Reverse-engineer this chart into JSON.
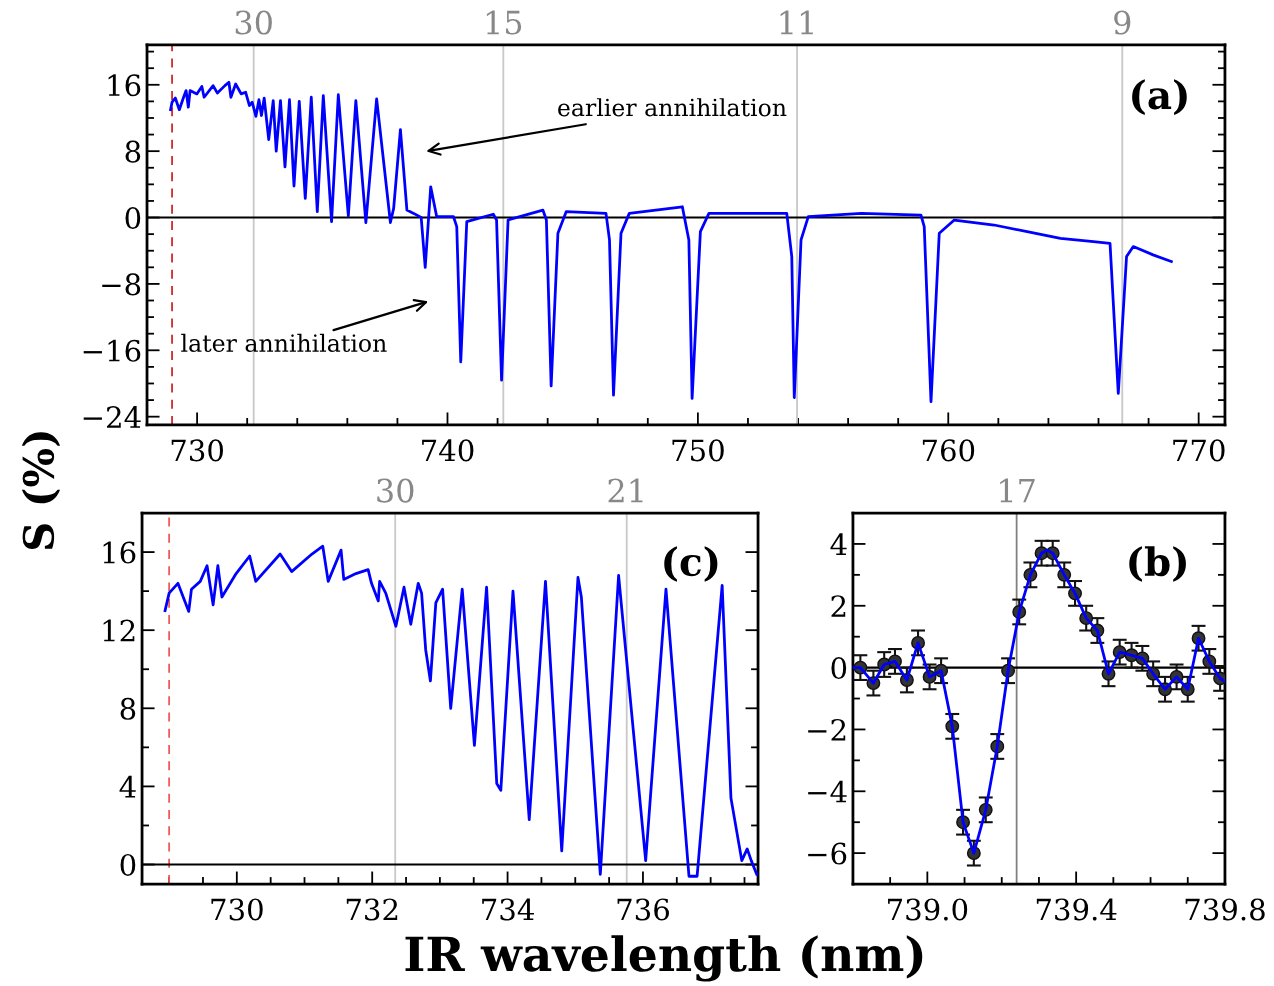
{
  "chart_data": [
    {
      "type": "line",
      "title": "(a)",
      "ylabel": "S (%)",
      "xlim": [
        728.0,
        771.05
      ],
      "xticks": [
        730,
        740,
        750,
        760,
        770
      ],
      "ylim": [
        -25,
        20.8
      ],
      "yticks": [
        {
          "value": -24,
          "label": "−24"
        },
        {
          "value": -16,
          "label": "−16"
        },
        {
          "value": -8,
          "label": "−8"
        },
        0,
        8,
        16
      ],
      "ref_lines": [
        {
          "axis": "x",
          "value": 732.26,
          "color": "#c8c8c8"
        },
        {
          "axis": "x",
          "value": 742.23,
          "color": "#c8c8c8"
        },
        {
          "axis": "x",
          "value": 753.96,
          "color": "#c8c8c8"
        },
        {
          "axis": "x",
          "value": 766.95,
          "color": "#c8c8c8"
        },
        {
          "axis": "x",
          "value": 729.0,
          "color": "#d42a2a",
          "line_style": "dashed"
        },
        {
          "axis": "y",
          "value": 0,
          "color": "#000000"
        }
      ],
      "annotations": [
        "earlier annihilation",
        "later annihilation",
        {
          "text": "30",
          "x": 732.26,
          "y": 20.8
        },
        {
          "text": "15",
          "x": 742.23,
          "y": 20.8
        },
        {
          "text": "11",
          "x": 753.96,
          "y": 20.8
        },
        {
          "text": "9",
          "x": 766.95,
          "y": 20.8
        }
      ],
      "series": [
        {
          "color": "#0000ff",
          "x": [
            728.94,
            729.0,
            729.13,
            729.29,
            729.46,
            729.56,
            729.65,
            729.72,
            729.99,
            730.19,
            730.28,
            730.64,
            730.81,
            731.11,
            731.27,
            731.35,
            731.54,
            731.76,
            731.94,
            732.09,
            732.2,
            732.35,
            732.47,
            732.57,
            732.68,
            732.86,
            733.04,
            733.16,
            733.33,
            733.51,
            733.69,
            733.87,
            734.08,
            734.32,
            734.56,
            734.8,
            735.04,
            735.37,
            735.64,
            736.04,
            736.34,
            736.74,
            737.17,
            737.72,
            737.85,
            738.12,
            738.38,
            738.65,
            738.95,
            739.11,
            739.33,
            739.57,
            740.24,
            740.37,
            740.53,
            740.77,
            741.83,
            741.96,
            742.16,
            742.42,
            743.81,
            743.95,
            744.14,
            744.41,
            744.74,
            746.33,
            746.47,
            746.63,
            746.93,
            747.26,
            749.38,
            749.64,
            749.77,
            750.1,
            750.44,
            753.55,
            753.75,
            753.85,
            754.12,
            754.41,
            756.53,
            758.91,
            759.04,
            759.31,
            759.64,
            760.24,
            761.83,
            763.15,
            764.48,
            765.8,
            766.46,
            766.79,
            767.12,
            767.39,
            768.18,
            768.91
          ],
          "values": [
            13.0,
            13.9,
            14.4,
            13.0,
            14.5,
            15.3,
            13.3,
            15.3,
            14.9,
            15.8,
            14.5,
            15.9,
            15.0,
            15.9,
            16.3,
            14.5,
            16.1,
            14.9,
            15.1,
            13.5,
            13.9,
            12.2,
            14.2,
            12.3,
            14.4,
            9.4,
            14.1,
            8.0,
            14.1,
            6.1,
            14.2,
            3.8,
            14.0,
            2.3,
            14.5,
            0.7,
            14.7,
            -0.5,
            14.8,
            0.2,
            14.1,
            -0.6,
            14.3,
            -0.6,
            1.1,
            10.6,
            0.9,
            0.5,
            0.0,
            -6.0,
            3.7,
            0.1,
            0.1,
            -1.1,
            -17.4,
            -0.5,
            0.4,
            -0.3,
            -19.6,
            -0.3,
            0.9,
            -0.3,
            -20.3,
            -1.9,
            0.7,
            0.5,
            -2.7,
            -21.4,
            -1.9,
            0.5,
            1.3,
            -2.7,
            -21.8,
            -1.7,
            0.5,
            0.5,
            -4.7,
            -21.7,
            -2.7,
            0.1,
            0.5,
            0.3,
            -1.1,
            -22.2,
            -1.9,
            -0.3,
            -0.9,
            -1.7,
            -2.5,
            -2.9,
            -3.1,
            -21.2,
            -4.7,
            -3.5,
            -4.5,
            -5.3
          ]
        }
      ]
    },
    {
      "type": "line",
      "title": "(c)",
      "xlim": [
        728.6,
        737.7
      ],
      "xticks": [
        730,
        732,
        734,
        736
      ],
      "ylim": [
        -1,
        18
      ],
      "yticks": [
        0,
        4,
        8,
        12,
        16
      ],
      "annotations": [
        {
          "text": "30",
          "x": 732.34,
          "y": 18
        },
        {
          "text": "21",
          "x": 735.76,
          "y": 18
        }
      ],
      "ref_lines": [
        {
          "axis": "x",
          "value": 732.34,
          "color": "#c8c8c8"
        },
        {
          "axis": "x",
          "value": 735.76,
          "color": "#c8c8c8"
        },
        {
          "axis": "x",
          "value": 729.0,
          "color": "#f05a5a",
          "line_style": "dashed"
        },
        {
          "axis": "y",
          "value": 0,
          "color": "#000000"
        }
      ],
      "series": [
        {
          "color": "#0000ff",
          "x": [
            728.94,
            729.0,
            729.13,
            729.29,
            729.33,
            729.46,
            729.56,
            729.65,
            729.72,
            729.78,
            729.99,
            730.19,
            730.28,
            730.64,
            730.81,
            731.11,
            731.27,
            731.35,
            731.54,
            731.58,
            731.76,
            731.94,
            731.99,
            732.09,
            732.11,
            732.2,
            732.35,
            732.47,
            732.57,
            732.68,
            732.73,
            732.79,
            732.86,
            732.94,
            733.04,
            733.16,
            733.33,
            733.51,
            733.69,
            733.84,
            733.9,
            734.08,
            734.32,
            734.56,
            734.8,
            735.04,
            735.09,
            735.37,
            735.64,
            736.04,
            736.34,
            736.68,
            736.8,
            737.17,
            737.3,
            737.46,
            737.54,
            737.6,
            737.68
          ],
          "values": [
            13.0,
            13.9,
            14.4,
            12.96,
            14.1,
            14.5,
            15.3,
            13.3,
            15.3,
            13.7,
            14.9,
            15.8,
            14.5,
            15.9,
            15.0,
            15.9,
            16.3,
            14.5,
            16.1,
            14.6,
            14.9,
            15.1,
            14.4,
            13.5,
            14.5,
            13.9,
            12.2,
            14.2,
            12.3,
            14.4,
            13.9,
            11.0,
            9.4,
            13.4,
            14.1,
            8.0,
            14.1,
            6.1,
            14.2,
            4.15,
            3.8,
            14.0,
            2.3,
            14.5,
            0.7,
            14.7,
            13.7,
            -0.5,
            14.8,
            0.2,
            14.1,
            -0.6,
            -0.6,
            14.3,
            3.4,
            0.2,
            0.8,
            0.2,
            -0.5
          ]
        }
      ]
    },
    {
      "type": "scatter",
      "title": "(b)",
      "xlabel": "IR wavelength (nm)",
      "xlim": [
        738.8,
        739.8
      ],
      "xticks": [
        {
          "value": 739.0,
          "label": "739.0"
        },
        {
          "value": 739.4,
          "label": "739.4"
        },
        {
          "value": 739.8,
          "label": "739.8"
        }
      ],
      "ylim": [
        -7,
        5
      ],
      "yticks": [
        {
          "value": -6,
          "label": "−6"
        },
        {
          "value": -4,
          "label": "−4"
        },
        {
          "value": -2,
          "label": "−2"
        },
        0,
        2,
        4
      ],
      "annotations": [
        {
          "text": "17",
          "x": 739.24,
          "y": 5
        }
      ],
      "ref_lines": [
        {
          "axis": "x",
          "value": 739.24,
          "color": "#808080"
        },
        {
          "axis": "y",
          "value": 0,
          "color": "#000000"
        }
      ],
      "series": [
        {
          "type": "scatter",
          "color": "#333333",
          "marker": "circle",
          "x": [
            738.82,
            738.855,
            738.884,
            738.913,
            738.945,
            738.975,
            739.006,
            739.037,
            739.067,
            739.096,
            739.125,
            739.157,
            739.188,
            739.217,
            739.247,
            739.277,
            739.307,
            739.337,
            739.368,
            739.397,
            739.427,
            739.457,
            739.487,
            739.517,
            739.549,
            739.578,
            739.607,
            739.639,
            739.67,
            739.7,
            739.729,
            739.758,
            739.787
          ],
          "values": [
            0.0,
            -0.5,
            0.1,
            0.2,
            -0.4,
            0.8,
            -0.3,
            -0.1,
            -1.9,
            -5.0,
            -6.0,
            -4.6,
            -2.55,
            -0.1,
            1.8,
            3.0,
            3.7,
            3.7,
            3.0,
            2.4,
            1.6,
            1.2,
            -0.2,
            0.5,
            0.4,
            0.3,
            -0.2,
            -0.7,
            -0.3,
            -0.7,
            0.95,
            0.2,
            -0.35
          ],
          "errors": [
            0.4,
            0.4,
            0.4,
            0.4,
            0.4,
            0.4,
            0.4,
            0.4,
            0.4,
            0.4,
            0.4,
            0.4,
            0.4,
            0.4,
            0.4,
            0.4,
            0.4,
            0.4,
            0.4,
            0.4,
            0.4,
            0.4,
            0.4,
            0.4,
            0.4,
            0.4,
            0.4,
            0.4,
            0.4,
            0.4,
            0.4,
            0.4,
            0.4
          ]
        },
        {
          "type": "line",
          "color": "#0000ff",
          "x": [
            738.8,
            738.82,
            738.855,
            738.884,
            738.913,
            738.945,
            738.975,
            739.006,
            739.037,
            739.067,
            739.096,
            739.125,
            739.157,
            739.188,
            739.217,
            739.247,
            739.277,
            739.307,
            739.322,
            739.337,
            739.368,
            739.397,
            739.427,
            739.457,
            739.487,
            739.517,
            739.549,
            739.578,
            739.607,
            739.639,
            739.67,
            739.7,
            739.729,
            739.758,
            739.787,
            739.8
          ],
          "values": [
            0.0,
            0.0,
            -0.5,
            0.1,
            0.2,
            -0.4,
            0.8,
            -0.3,
            -0.1,
            -1.9,
            -5.0,
            -6.0,
            -4.6,
            -2.55,
            -0.1,
            1.8,
            3.0,
            3.7,
            3.8,
            3.7,
            3.0,
            2.4,
            1.6,
            1.2,
            -0.2,
            0.5,
            0.4,
            0.3,
            -0.2,
            -0.7,
            -0.3,
            -0.7,
            0.95,
            0.2,
            -0.35,
            -0.45
          ]
        }
      ]
    }
  ]
}
